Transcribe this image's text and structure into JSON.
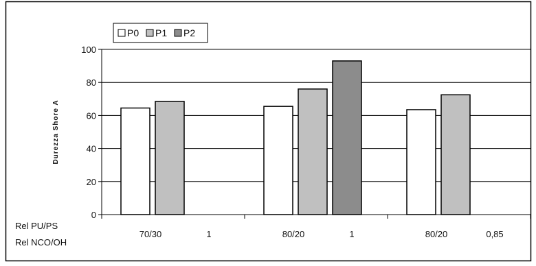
{
  "chart_data": {
    "type": "bar",
    "ylabel": "Durezza Shore A",
    "ylim": [
      0,
      100
    ],
    "yticks": [
      0,
      20,
      40,
      60,
      80,
      100
    ],
    "grid": true,
    "legend_position": "top-left",
    "row_labels": [
      "Rel PU/PS",
      "Rel NCO/OH"
    ],
    "groups": [
      {
        "pu_ps": "70/30",
        "nco_oh": "1"
      },
      {
        "pu_ps": "80/20",
        "nco_oh": "1"
      },
      {
        "pu_ps": "80/20",
        "nco_oh": "0,85"
      }
    ],
    "series": [
      {
        "name": "P0",
        "color": "#ffffff",
        "values": [
          64.5,
          65.5,
          63.5
        ]
      },
      {
        "name": "P1",
        "color": "#c0c0c0",
        "values": [
          68.5,
          76,
          72.5
        ]
      },
      {
        "name": "P2",
        "color": "#8c8c8c",
        "values": [
          null,
          93,
          null
        ]
      }
    ]
  }
}
